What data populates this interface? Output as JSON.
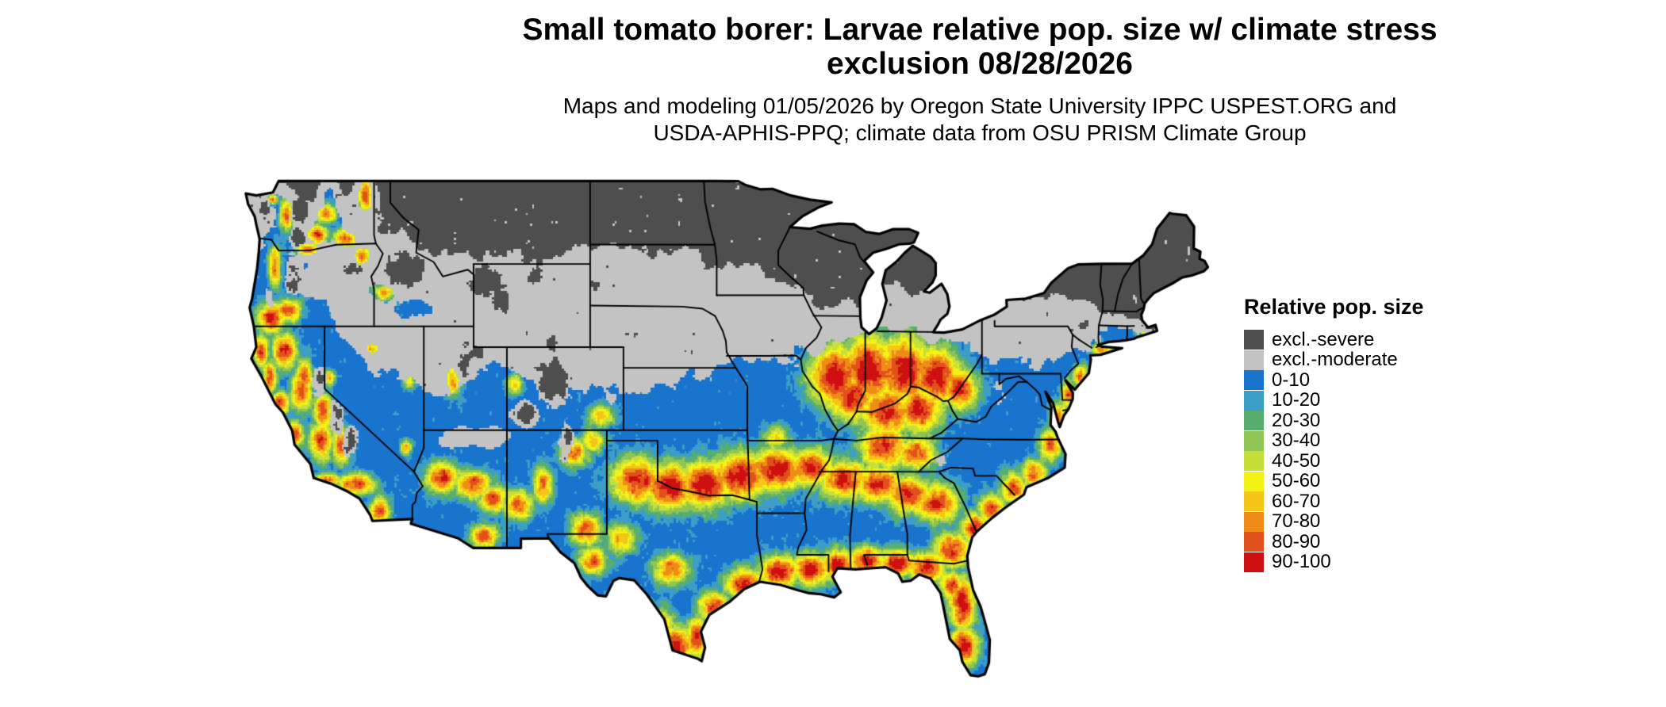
{
  "header": {
    "title_line1": "Small tomato borer: Larvae relative pop. size w/ climate stress",
    "title_line2": "exclusion 08/28/2026",
    "subtitle_line1": "Maps and modeling 01/05/2026 by Oregon State University IPPC USPEST.ORG and",
    "subtitle_line2": "USDA-APHIS-PPQ; climate data from OSU PRISM Climate Group"
  },
  "legend": {
    "title": "Relative pop. size",
    "items": [
      {
        "label": "excl.-severe",
        "color": "#4e4e4e"
      },
      {
        "label": "excl.-moderate",
        "color": "#c3c3c3"
      },
      {
        "label": "0-10",
        "color": "#1874cd"
      },
      {
        "label": "10-20",
        "color": "#3c9dc6"
      },
      {
        "label": "20-30",
        "color": "#58ae6e"
      },
      {
        "label": "30-40",
        "color": "#8fc554"
      },
      {
        "label": "40-50",
        "color": "#c6df3a"
      },
      {
        "label": "50-60",
        "color": "#f2f215"
      },
      {
        "label": "60-70",
        "color": "#f5c518"
      },
      {
        "label": "70-80",
        "color": "#ef8c17"
      },
      {
        "label": "80-90",
        "color": "#e2511c"
      },
      {
        "label": "90-100",
        "color": "#ce1010"
      }
    ]
  },
  "map": {
    "region": "Contiguous United States",
    "outline_color": "#000000",
    "background": "#ffffff"
  }
}
